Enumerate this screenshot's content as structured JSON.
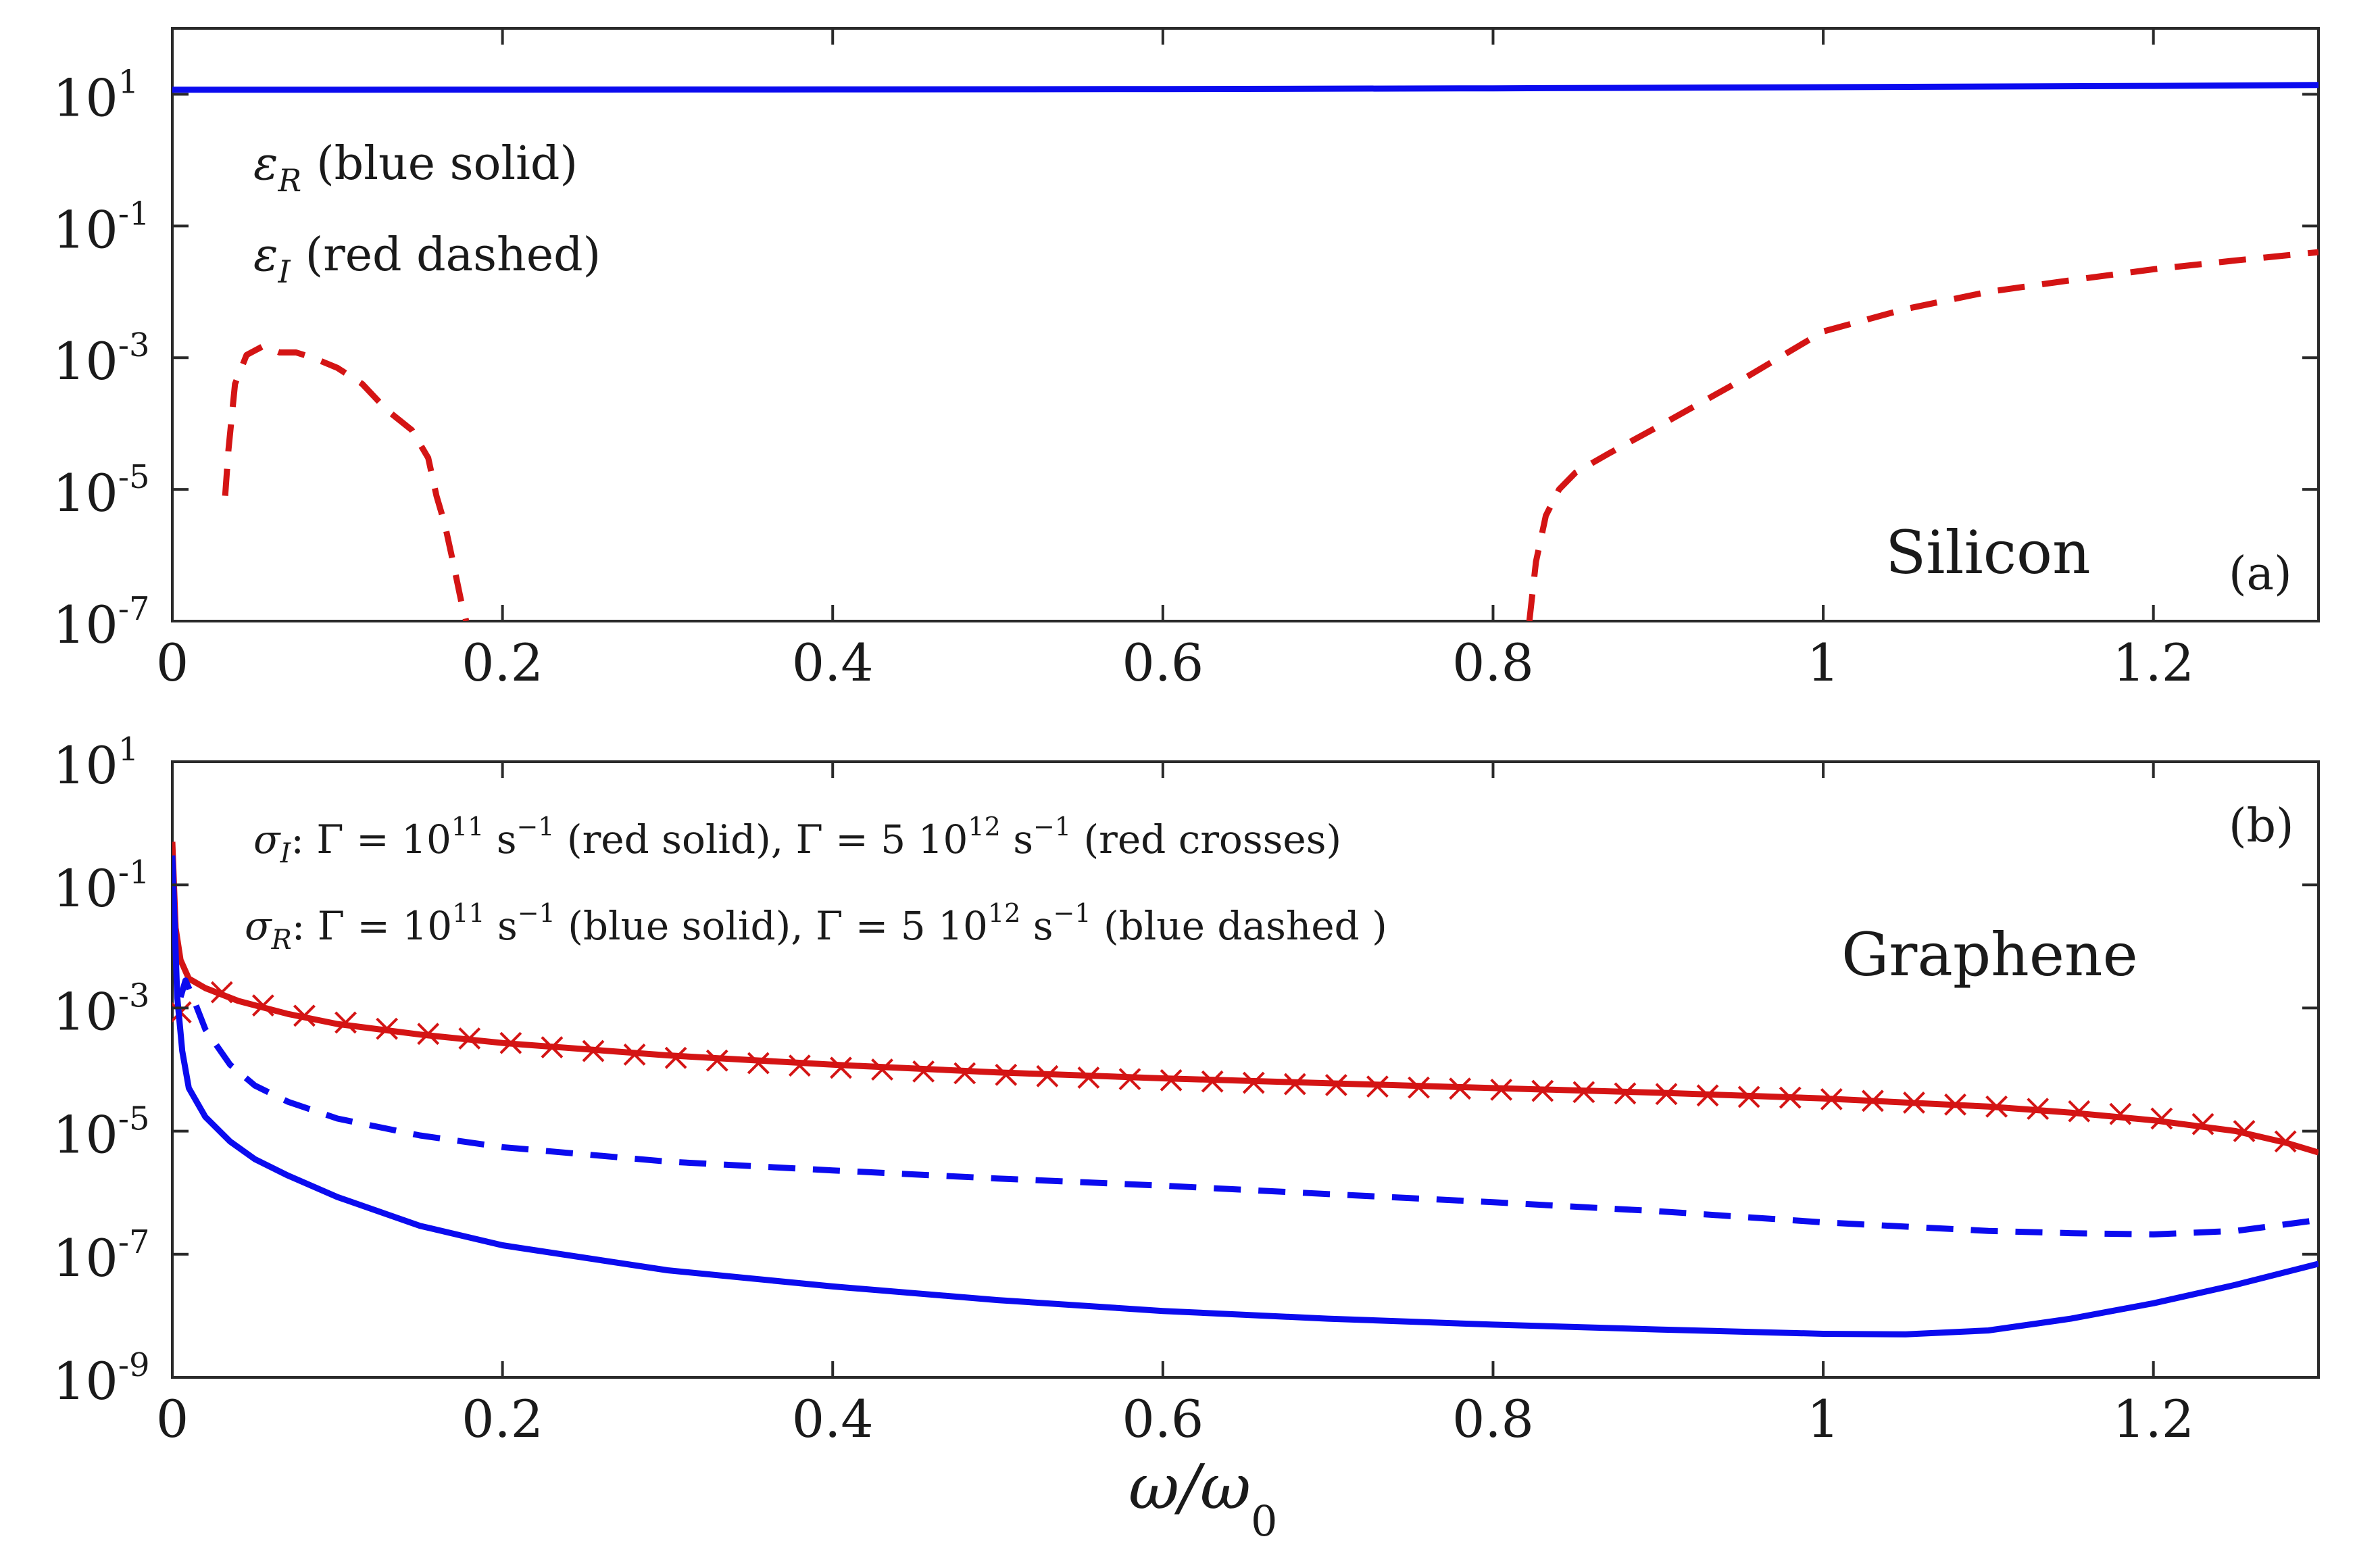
{
  "chart_data": [
    {
      "type": "line",
      "panel": "(a)",
      "material": "Silicon",
      "xlabel": "",
      "yscale": "log",
      "xlim": [
        0,
        1.3
      ],
      "ylim": [
        1e-07,
        100
      ],
      "xticks": [
        0,
        0.2,
        0.4,
        0.6,
        0.8,
        1,
        1.2
      ],
      "xtick_labels": [
        "0",
        "0.2",
        "0.4",
        "0.6",
        "0.8",
        "1",
        "1.2"
      ],
      "yticks": [
        {
          "base": "10",
          "exp": "1",
          "value": 10
        },
        {
          "base": "10",
          "exp": "-1",
          "value": 0.1
        },
        {
          "base": "10",
          "exp": "-3",
          "value": 0.001
        },
        {
          "base": "10",
          "exp": "-5",
          "value": 1e-05
        },
        {
          "base": "10",
          "exp": "-7",
          "value": 1e-07
        }
      ],
      "legend": [
        {
          "sym": "ε",
          "sub": "R",
          "text": "(blue solid)"
        },
        {
          "sym": "ε",
          "sub": "I",
          "text": "(red dashed)"
        }
      ],
      "series": [
        {
          "name": "ε_R",
          "color": "#0b0bef",
          "style": "solid",
          "x": [
            0,
            0.2,
            0.4,
            0.6,
            0.8,
            1.0,
            1.2,
            1.3
          ],
          "y": [
            11.7,
            11.75,
            11.85,
            12.0,
            12.3,
            12.8,
            13.4,
            13.8
          ]
        },
        {
          "name": "ε_I (low band)",
          "color": "#d41414",
          "style": "dashed",
          "x": [
            0.032,
            0.034,
            0.038,
            0.045,
            0.055,
            0.065,
            0.075,
            0.085,
            0.1,
            0.115,
            0.13,
            0.145,
            0.155,
            0.16,
            0.165,
            0.17,
            0.175,
            0.178
          ],
          "y": [
            8e-06,
            4e-05,
            0.0004,
            0.0011,
            0.0015,
            0.0012,
            0.0012,
            0.001,
            0.0007,
            0.0004,
            0.00016,
            8e-05,
            3e-05,
            8e-06,
            3e-06,
            8e-07,
            2e-07,
            1e-07
          ]
        },
        {
          "name": "ε_I (high band)",
          "color": "#d41414",
          "style": "dashed",
          "x": [
            0.822,
            0.826,
            0.832,
            0.84,
            0.85,
            0.87,
            0.9,
            0.95,
            1.0,
            1.05,
            1.1,
            1.15,
            1.2,
            1.25,
            1.3
          ],
          "y": [
            1e-07,
            8e-07,
            4e-06,
            1e-05,
            1.8e-05,
            3.5e-05,
            9e-05,
            0.00045,
            0.0025,
            0.0055,
            0.01,
            0.015,
            0.022,
            0.03,
            0.04
          ]
        }
      ]
    },
    {
      "type": "line",
      "panel": "(b)",
      "material": "Graphene",
      "xlabel": "ω/ω",
      "xlabel_sub": "0",
      "yscale": "log",
      "xlim": [
        0,
        1.3
      ],
      "ylim": [
        1e-09,
        10
      ],
      "xticks": [
        0,
        0.2,
        0.4,
        0.6,
        0.8,
        1,
        1.2
      ],
      "xtick_labels": [
        "0",
        "0.2",
        "0.4",
        "0.6",
        "0.8",
        "1",
        "1.2"
      ],
      "yticks": [
        {
          "base": "10",
          "exp": "1",
          "value": 10
        },
        {
          "base": "10",
          "exp": "-1",
          "value": 0.1
        },
        {
          "base": "10",
          "exp": "-3",
          "value": 0.001
        },
        {
          "base": "10",
          "exp": "-5",
          "value": 1e-05
        },
        {
          "base": "10",
          "exp": "-7",
          "value": 1e-07
        },
        {
          "base": "10",
          "exp": "-9",
          "value": 1e-09
        }
      ],
      "legend": [
        {
          "sym": "σ",
          "sub": "I",
          "parts": [
            ": Γ = 10",
            "11",
            " s",
            "−1",
            " (red solid), Γ = 5 10",
            "12",
            " s",
            "−1",
            " (red crosses)"
          ]
        },
        {
          "sym": "σ",
          "sub": "R",
          "parts": [
            ": Γ = 10",
            "11",
            " s",
            "−1",
            " (blue solid), Γ = 5 10",
            "12",
            " s",
            "−1",
            " (blue dashed )"
          ]
        }
      ],
      "series": [
        {
          "name": "σ_I, Γ = 10^11 s^-1",
          "color": "#d41414",
          "style": "solid",
          "x": [
            0.0,
            0.002,
            0.005,
            0.01,
            0.02,
            0.04,
            0.07,
            0.1,
            0.15,
            0.2,
            0.3,
            0.4,
            0.5,
            0.6,
            0.7,
            0.8,
            0.9,
            1.0,
            1.1,
            1.15,
            1.2,
            1.25,
            1.28,
            1.3
          ],
          "y": [
            0.5,
            0.02,
            0.006,
            0.003,
            0.0021,
            0.0013,
            0.0008,
            0.00055,
            0.00037,
            0.00027,
            0.00017,
            0.00012,
            9e-05,
            7.2e-05,
            6e-05,
            5e-05,
            4.2e-05,
            3.4e-05,
            2.5e-05,
            2e-05,
            1.5e-05,
            1e-05,
            6.5e-06,
            4.5e-06
          ]
        },
        {
          "name": "σ_I, Γ = 5·10^12 s^-1",
          "color": "#d41414",
          "style": "crosses",
          "x": [
            0.005,
            0.03,
            0.055,
            0.08,
            0.105,
            0.13,
            0.155,
            0.18,
            0.205,
            0.23,
            0.255,
            0.28,
            0.305,
            0.33,
            0.355,
            0.38,
            0.405,
            0.43,
            0.455,
            0.48,
            0.505,
            0.53,
            0.555,
            0.58,
            0.605,
            0.63,
            0.655,
            0.68,
            0.705,
            0.73,
            0.755,
            0.78,
            0.805,
            0.83,
            0.855,
            0.88,
            0.905,
            0.93,
            0.955,
            0.98,
            1.005,
            1.03,
            1.055,
            1.08,
            1.105,
            1.13,
            1.155,
            1.18,
            1.205,
            1.23,
            1.255,
            1.28
          ],
          "y": [
            0.00085,
            0.0018,
            0.0011,
            0.00075,
            0.00058,
            0.00046,
            0.00038,
            0.00032,
            0.00027,
            0.00023,
            0.0002,
            0.000175,
            0.000155,
            0.00014,
            0.000127,
            0.000116,
            0.000107,
            0.0001,
            9.3e-05,
            8.7e-05,
            8.2e-05,
            7.8e-05,
            7.4e-05,
            7e-05,
            6.7e-05,
            6.4e-05,
            6.1e-05,
            5.8e-05,
            5.6e-05,
            5.3e-05,
            5.1e-05,
            4.9e-05,
            4.7e-05,
            4.5e-05,
            4.3e-05,
            4.1e-05,
            4e-05,
            3.8e-05,
            3.6e-05,
            3.5e-05,
            3.3e-05,
            3.1e-05,
            2.9e-05,
            2.7e-05,
            2.5e-05,
            2.3e-05,
            2.1e-05,
            1.9e-05,
            1.6e-05,
            1.3e-05,
            1e-05,
            6.8e-06
          ]
        },
        {
          "name": "σ_R, Γ = 5·10^12 s^-1",
          "color": "#0b0bef",
          "style": "dashed",
          "x": [
            0.005,
            0.008,
            0.012,
            0.02,
            0.035,
            0.05,
            0.07,
            0.1,
            0.15,
            0.2,
            0.3,
            0.4,
            0.5,
            0.6,
            0.7,
            0.8,
            0.9,
            1.0,
            1.1,
            1.15,
            1.2,
            1.25,
            1.3
          ],
          "y": [
            0.0015,
            0.0028,
            0.0016,
            0.00045,
            0.00012,
            5.5e-05,
            3e-05,
            1.6e-05,
            8.5e-06,
            5.5e-06,
            3.2e-06,
            2.3e-06,
            1.7e-06,
            1.3e-06,
            9.5e-07,
            7e-07,
            5e-07,
            3.3e-07,
            2.4e-07,
            2.2e-07,
            2.1e-07,
            2.4e-07,
            3.6e-07
          ]
        },
        {
          "name": "σ_R, Γ = 10^11 s^-1",
          "color": "#0b0bef",
          "style": "solid",
          "x": [
            0.0,
            0.0015,
            0.003,
            0.006,
            0.01,
            0.02,
            0.035,
            0.05,
            0.07,
            0.1,
            0.15,
            0.2,
            0.3,
            0.4,
            0.5,
            0.6,
            0.7,
            0.8,
            0.9,
            1.0,
            1.05,
            1.1,
            1.15,
            1.2,
            1.25,
            1.3
          ],
          "y": [
            0.3,
            0.02,
            0.0015,
            0.0002,
            5e-05,
            1.7e-05,
            6.8e-06,
            3.5e-06,
            1.9e-06,
            8.5e-07,
            2.9e-07,
            1.4e-07,
            5.5e-08,
            3e-08,
            1.8e-08,
            1.2e-08,
            9e-09,
            7.2e-09,
            6e-09,
            5.1e-09,
            5e-09,
            5.8e-09,
            9e-09,
            1.6e-08,
            3.2e-08,
            7e-08
          ]
        }
      ]
    }
  ]
}
